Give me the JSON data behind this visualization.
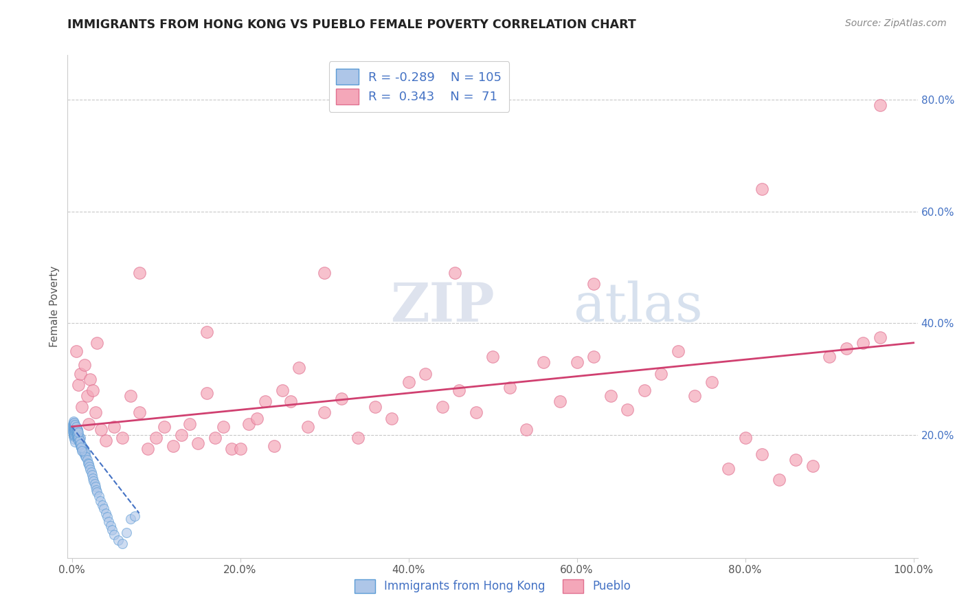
{
  "title": "IMMIGRANTS FROM HONG KONG VS PUEBLO FEMALE POVERTY CORRELATION CHART",
  "source_text": "Source: ZipAtlas.com",
  "ylabel": "Female Poverty",
  "watermark_zip": "ZIP",
  "watermark_atlas": "atlas",
  "legend_r1": "R = -0.289",
  "legend_n1": "N = 105",
  "legend_r2": "R =  0.343",
  "legend_n2": "N =  71",
  "xlim": [
    -0.005,
    1.005
  ],
  "ylim": [
    -0.02,
    0.88
  ],
  "xtick_labels": [
    "0.0%",
    "20.0%",
    "40.0%",
    "60.0%",
    "80.0%",
    "100.0%"
  ],
  "xtick_vals": [
    0,
    0.2,
    0.4,
    0.6,
    0.8,
    1.0
  ],
  "ytick_labels": [
    "20.0%",
    "40.0%",
    "60.0%",
    "80.0%"
  ],
  "ytick_vals": [
    0.2,
    0.4,
    0.6,
    0.8
  ],
  "blue_fill": "#aec6e8",
  "blue_edge": "#5b9bd5",
  "pink_fill": "#f4a7b9",
  "pink_edge": "#e07090",
  "blue_line_color": "#4472C4",
  "pink_line_color": "#d04070",
  "title_color": "#222222",
  "axis_label_color": "#555555",
  "tick_color": "#555555",
  "right_tick_color": "#4472C4",
  "grid_color": "#c8c8c8",
  "blue_dots_x": [
    0.001,
    0.001,
    0.001,
    0.002,
    0.002,
    0.002,
    0.002,
    0.002,
    0.002,
    0.003,
    0.003,
    0.003,
    0.003,
    0.003,
    0.003,
    0.004,
    0.004,
    0.004,
    0.004,
    0.004,
    0.005,
    0.005,
    0.005,
    0.005,
    0.006,
    0.006,
    0.006,
    0.006,
    0.007,
    0.007,
    0.007,
    0.007,
    0.008,
    0.008,
    0.008,
    0.009,
    0.009,
    0.009,
    0.01,
    0.01,
    0.01,
    0.011,
    0.011,
    0.012,
    0.012,
    0.013,
    0.013,
    0.014,
    0.014,
    0.015,
    0.015,
    0.016,
    0.016,
    0.017,
    0.018,
    0.019,
    0.02,
    0.021,
    0.022,
    0.023,
    0.024,
    0.025,
    0.026,
    0.027,
    0.028,
    0.029,
    0.03,
    0.032,
    0.034,
    0.036,
    0.038,
    0.04,
    0.042,
    0.044,
    0.046,
    0.048,
    0.05,
    0.055,
    0.06,
    0.065,
    0.07,
    0.075,
    0.001,
    0.002,
    0.002,
    0.003,
    0.003,
    0.004,
    0.004,
    0.005,
    0.005,
    0.006,
    0.006,
    0.007,
    0.008,
    0.009,
    0.01,
    0.011,
    0.012,
    0.002,
    0.003,
    0.004,
    0.005,
    0.007,
    0.008
  ],
  "blue_dots_y": [
    0.21,
    0.215,
    0.205,
    0.2,
    0.21,
    0.215,
    0.205,
    0.198,
    0.22,
    0.205,
    0.198,
    0.21,
    0.215,
    0.2,
    0.192,
    0.205,
    0.198,
    0.21,
    0.215,
    0.188,
    0.2,
    0.205,
    0.198,
    0.21,
    0.195,
    0.2,
    0.205,
    0.21,
    0.192,
    0.198,
    0.205,
    0.21,
    0.19,
    0.195,
    0.2,
    0.185,
    0.19,
    0.195,
    0.18,
    0.185,
    0.195,
    0.178,
    0.183,
    0.175,
    0.18,
    0.172,
    0.178,
    0.168,
    0.175,
    0.165,
    0.17,
    0.162,
    0.168,
    0.16,
    0.155,
    0.15,
    0.148,
    0.143,
    0.138,
    0.133,
    0.128,
    0.122,
    0.118,
    0.112,
    0.108,
    0.102,
    0.098,
    0.09,
    0.082,
    0.075,
    0.068,
    0.06,
    0.053,
    0.045,
    0.038,
    0.03,
    0.022,
    0.012,
    0.005,
    0.025,
    0.05,
    0.055,
    0.22,
    0.218,
    0.222,
    0.215,
    0.218,
    0.212,
    0.216,
    0.208,
    0.214,
    0.205,
    0.21,
    0.202,
    0.196,
    0.19,
    0.184,
    0.178,
    0.172,
    0.225,
    0.222,
    0.218,
    0.215,
    0.208,
    0.205
  ],
  "pink_dots_x": [
    0.005,
    0.008,
    0.01,
    0.012,
    0.015,
    0.018,
    0.02,
    0.022,
    0.025,
    0.028,
    0.03,
    0.035,
    0.04,
    0.05,
    0.06,
    0.07,
    0.08,
    0.09,
    0.1,
    0.11,
    0.12,
    0.13,
    0.14,
    0.15,
    0.16,
    0.17,
    0.18,
    0.19,
    0.2,
    0.21,
    0.22,
    0.23,
    0.24,
    0.25,
    0.26,
    0.27,
    0.28,
    0.3,
    0.32,
    0.34,
    0.36,
    0.38,
    0.4,
    0.42,
    0.44,
    0.46,
    0.48,
    0.5,
    0.52,
    0.54,
    0.56,
    0.58,
    0.6,
    0.62,
    0.64,
    0.66,
    0.68,
    0.7,
    0.72,
    0.74,
    0.76,
    0.78,
    0.8,
    0.82,
    0.84,
    0.86,
    0.88,
    0.9,
    0.92,
    0.94,
    0.96
  ],
  "pink_dots_y": [
    0.35,
    0.29,
    0.31,
    0.25,
    0.325,
    0.27,
    0.22,
    0.3,
    0.28,
    0.24,
    0.365,
    0.21,
    0.19,
    0.215,
    0.195,
    0.27,
    0.24,
    0.175,
    0.195,
    0.215,
    0.18,
    0.2,
    0.22,
    0.185,
    0.275,
    0.195,
    0.215,
    0.175,
    0.175,
    0.22,
    0.23,
    0.26,
    0.18,
    0.28,
    0.26,
    0.32,
    0.215,
    0.24,
    0.265,
    0.195,
    0.25,
    0.23,
    0.295,
    0.31,
    0.25,
    0.28,
    0.24,
    0.34,
    0.285,
    0.21,
    0.33,
    0.26,
    0.33,
    0.34,
    0.27,
    0.245,
    0.28,
    0.31,
    0.35,
    0.27,
    0.295,
    0.14,
    0.195,
    0.165,
    0.12,
    0.155,
    0.145,
    0.34,
    0.355,
    0.365,
    0.375
  ],
  "extra_pink_x": [
    0.455,
    0.62,
    0.82,
    0.96,
    0.3,
    0.16,
    0.08
  ],
  "extra_pink_y": [
    0.49,
    0.47,
    0.64,
    0.79,
    0.49,
    0.385,
    0.49
  ],
  "blue_trend_x": [
    0.0,
    0.08
  ],
  "blue_trend_y": [
    0.215,
    0.06
  ],
  "pink_trend_x": [
    0.0,
    1.0
  ],
  "pink_trend_y": [
    0.215,
    0.365
  ]
}
